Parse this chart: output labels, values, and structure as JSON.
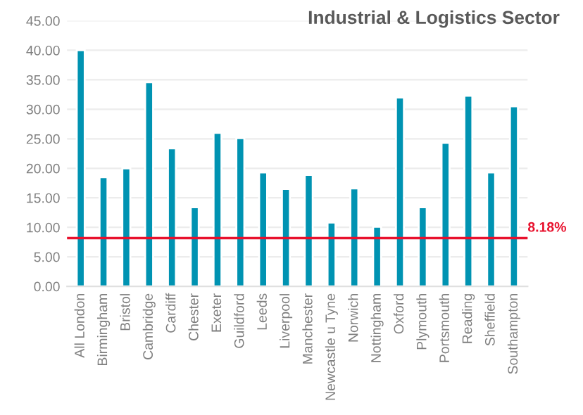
{
  "chart_data": {
    "type": "bar",
    "title": "Industrial & Logistics Sector",
    "categories": [
      "All London",
      "Birmingham",
      "Bristol",
      "Cambridge",
      "Cardiff",
      "Chester",
      "Exeter",
      "Guildford",
      "Leeds",
      "Liverpool",
      "Manchester",
      "Newcastle u Tyne",
      "Norwich",
      "Nottingham",
      "Oxford",
      "Plymouth",
      "Portsmouth",
      "Reading",
      "Sheffield",
      "Southampton"
    ],
    "values": [
      40.0,
      18.5,
      20.0,
      34.6,
      23.4,
      13.4,
      26.0,
      25.1,
      19.3,
      16.5,
      18.9,
      10.8,
      16.6,
      10.1,
      32.0,
      13.4,
      24.3,
      32.3,
      19.3,
      30.5
    ],
    "color": "#0093b2",
    "ylim": [
      0,
      45
    ],
    "yticks": [
      {
        "value": 0,
        "label": "0.00"
      },
      {
        "value": 5,
        "label": "5.00"
      },
      {
        "value": 10,
        "label": "10.00"
      },
      {
        "value": 15,
        "label": "15.00"
      },
      {
        "value": 20,
        "label": "20.00"
      },
      {
        "value": 25,
        "label": "25.00"
      },
      {
        "value": 30,
        "label": "30.00"
      },
      {
        "value": 35,
        "label": "35.00"
      },
      {
        "value": 40,
        "label": "40.00"
      },
      {
        "value": 45,
        "label": "45.00"
      }
    ],
    "grid": "y",
    "ref_lines": [
      {
        "axis": "y",
        "value": 8.18,
        "label": "8.18%",
        "color": "#e8112d",
        "line_style": "solid"
      }
    ]
  }
}
